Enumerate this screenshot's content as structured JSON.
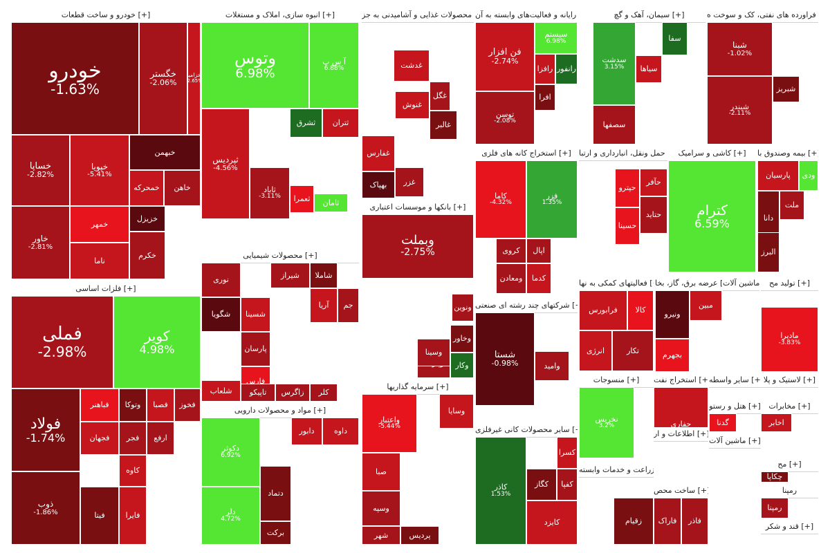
{
  "colors": {
    "neg_dark": "#7a0f12",
    "neg_mid": "#a5141a",
    "neg": "#c5161d",
    "neg_bright": "#e8141d",
    "neutral": "#5a0a0e",
    "pos_dark": "#1e6b22",
    "pos_mid": "#33a633",
    "pos": "#54e633"
  },
  "chart_data": {
    "type": "treemap",
    "sectors": [
      {
        "label": "خودرو و ساخت قطعات [+]",
        "stocks": [
          {
            "symbol": "خودرو",
            "change": "-1.63%"
          },
          {
            "symbol": "خگستر",
            "change": "-2.06%"
          },
          {
            "symbol": "خزامیا",
            "change": "-2.65%"
          },
          {
            "symbol": "خساپا",
            "change": "-2.82%"
          },
          {
            "symbol": "خپویا",
            "change": "-5.41%"
          },
          {
            "symbol": "خبهمن",
            "change": ""
          },
          {
            "symbol": "خمحرکه",
            "change": ""
          },
          {
            "symbol": "خاهن",
            "change": ""
          },
          {
            "symbol": "خزیزل",
            "change": ""
          },
          {
            "symbol": "خاور",
            "change": "-2.81%"
          },
          {
            "symbol": "خمهر",
            "change": ""
          },
          {
            "symbol": "ناما",
            "change": ""
          },
          {
            "symbol": "خکرم",
            "change": ""
          }
        ]
      },
      {
        "label": "فلزات اساسی [+]",
        "stocks": [
          {
            "symbol": "فملی",
            "change": "-2.98%"
          },
          {
            "symbol": "کویر",
            "change": "4.98%"
          },
          {
            "symbol": "فولاد",
            "change": "-1.74%"
          },
          {
            "symbol": "فباهنر",
            "change": ""
          },
          {
            "symbol": "وتوکا",
            "change": ""
          },
          {
            "symbol": "فصبا",
            "change": ""
          },
          {
            "symbol": "فخوز",
            "change": ""
          },
          {
            "symbol": "فجهان",
            "change": ""
          },
          {
            "symbol": "فجر",
            "change": ""
          },
          {
            "symbol": "ارفع",
            "change": ""
          },
          {
            "symbol": "کاوه",
            "change": ""
          },
          {
            "symbol": "ذوب",
            "change": "-1.86%"
          },
          {
            "symbol": "فیتا",
            "change": ""
          },
          {
            "symbol": "فایرا",
            "change": ""
          }
        ]
      },
      {
        "label": "انبوه سازی، املاک و مستغلات [+]",
        "stocks": [
          {
            "symbol": "وتوس",
            "change": "6.98%"
          },
          {
            "symbol": "آ س پ",
            "change": "6.88%"
          },
          {
            "symbol": "ثپردیس",
            "change": "-4.56%"
          },
          {
            "symbol": "ثشرق",
            "change": ""
          },
          {
            "symbol": "ثتران",
            "change": ""
          },
          {
            "symbol": "ثاباد",
            "change": "-3.11%"
          },
          {
            "symbol": "ثامان",
            "change": ""
          },
          {
            "symbol": "ثعمرا",
            "change": ""
          }
        ]
      },
      {
        "label": "محصولات شیمیایی [+]",
        "stocks": [
          {
            "symbol": "نوری",
            "change": ""
          },
          {
            "symbol": "شیراز",
            "change": ""
          },
          {
            "symbol": "شاملا",
            "change": ""
          },
          {
            "symbol": "شگویا",
            "change": ""
          },
          {
            "symbol": "شسینا",
            "change": ""
          },
          {
            "symbol": "آریا",
            "change": ""
          },
          {
            "symbol": "جم",
            "change": ""
          },
          {
            "symbol": "پارسان",
            "change": ""
          },
          {
            "symbol": "شپدیس",
            "change": ""
          },
          {
            "symbol": "شبهدی",
            "change": ""
          },
          {
            "symbol": "فارس",
            "change": ""
          },
          {
            "symbol": "شلعاب",
            "change": ""
          },
          {
            "symbol": "تاپیکو",
            "change": ""
          },
          {
            "symbol": "زاگرس",
            "change": ""
          },
          {
            "symbol": "کلر",
            "change": ""
          }
        ]
      },
      {
        "label": "مواد و محصولات دارویی [+]",
        "stocks": [
          {
            "symbol": "دکوثر",
            "change": "6.92%"
          },
          {
            "symbol": "دلر",
            "change": "4.72%"
          },
          {
            "symbol": "دتماد",
            "change": ""
          },
          {
            "symbol": "برکت",
            "change": ""
          },
          {
            "symbol": "دابور",
            "change": ""
          },
          {
            "symbol": "داوه",
            "change": ""
          }
        ]
      },
      {
        "label": "محصولات غذایی و آشامیدنی به جز [+]",
        "stocks": [
          {
            "symbol": "غدشت",
            "change": ""
          },
          {
            "symbol": "غگل",
            "change": ""
          },
          {
            "symbol": "غالبر",
            "change": ""
          },
          {
            "symbol": "غنوش",
            "change": ""
          },
          {
            "symbol": "غفارس",
            "change": ""
          },
          {
            "symbol": "غزر",
            "change": ""
          },
          {
            "symbol": "بهپاک",
            "change": ""
          }
        ]
      },
      {
        "label": "بانکها و موسسات اعتباری [+]",
        "stocks": [
          {
            "symbol": "وبملت",
            "change": "-2.75%"
          },
          {
            "symbol": "ونوین",
            "change": ""
          },
          {
            "symbol": "وخاور",
            "change": ""
          },
          {
            "symbol": "وپارسا",
            "change": ""
          },
          {
            "symbol": "وکار",
            "change": ""
          },
          {
            "symbol": "وسینا",
            "change": ""
          }
        ]
      },
      {
        "label": "سرمایه گذاریها [+]",
        "stocks": [
          {
            "symbol": "واعتبار",
            "change": "-5.44%"
          },
          {
            "symbol": "وسایا",
            "change": ""
          },
          {
            "symbol": "صبا",
            "change": ""
          },
          {
            "symbol": "وسپه",
            "change": ""
          },
          {
            "symbol": "شهر",
            "change": ""
          },
          {
            "symbol": "پردیس",
            "change": ""
          }
        ]
      },
      {
        "label": "رایانه و فعالیت‌های وابسته به آن [+]",
        "stocks": [
          {
            "symbol": "فن افزار",
            "change": "-2.74%"
          },
          {
            "symbol": "سیستم",
            "change": "6.98%"
          },
          {
            "symbol": "رانفور",
            "change": ""
          },
          {
            "symbol": "رافزا",
            "change": ""
          },
          {
            "symbol": "افرا",
            "change": ""
          },
          {
            "symbol": "توسن",
            "change": "-2.08%"
          }
        ]
      },
      {
        "label": "استخراج کانه های فلزی [+]",
        "stocks": [
          {
            "symbol": "کاما",
            "change": "-4.32%"
          },
          {
            "symbol": "فزر",
            "change": "1.35%"
          },
          {
            "symbol": "کروی",
            "change": ""
          },
          {
            "symbol": "اپال",
            "change": ""
          },
          {
            "symbol": "کدما",
            "change": ""
          },
          {
            "symbol": "ومعادن",
            "change": ""
          }
        ]
      },
      {
        "label": "شرکتهای چند رشته ای صنعتی [+]",
        "stocks": [
          {
            "symbol": "شستا",
            "change": "-0.98%"
          },
          {
            "symbol": "وامید",
            "change": ""
          }
        ]
      },
      {
        "label": "سایر محصولات کانی غیرفلزی [+]",
        "stocks": [
          {
            "symbol": "کاذر",
            "change": "1.53%"
          },
          {
            "symbol": "کسرا",
            "change": ""
          },
          {
            "symbol": "کگاز",
            "change": ""
          },
          {
            "symbol": "کفپا",
            "change": ""
          },
          {
            "symbol": "کایزد",
            "change": ""
          }
        ]
      },
      {
        "label": "سیمان، آهک و گچ [+]",
        "stocks": [
          {
            "symbol": "سدشت",
            "change": "3.15%"
          },
          {
            "symbol": "سفا",
            "change": ""
          },
          {
            "symbol": "سیاها",
            "change": ""
          },
          {
            "symbol": "سصفها",
            "change": ""
          }
        ]
      },
      {
        "label": "فراورده های نفتی، کک و سوخت ه [+]",
        "stocks": [
          {
            "symbol": "شبنا",
            "change": "-1.02%"
          },
          {
            "symbol": "شبریز",
            "change": ""
          },
          {
            "symbol": "شبندر",
            "change": "-2.11%"
          }
        ]
      },
      {
        "label": "حمل ونقل، انبارداری و ارتبا [+]",
        "stocks": [
          {
            "symbol": "حآفر",
            "change": ""
          },
          {
            "symbol": "حپترو",
            "change": ""
          },
          {
            "symbol": "حتاید",
            "change": ""
          },
          {
            "symbol": "حسینا",
            "change": ""
          }
        ]
      },
      {
        "label": "کاشی و سرامیک [+]",
        "stocks": [
          {
            "symbol": "کترام",
            "change": "6.59%"
          }
        ]
      },
      {
        "label": "بیمه وصندوق با [+]",
        "stocks": [
          {
            "symbol": "پارسیان",
            "change": ""
          },
          {
            "symbol": "ودی",
            "change": ""
          },
          {
            "symbol": "ملت",
            "change": ""
          },
          {
            "symbol": "دانا",
            "change": ""
          },
          {
            "symbol": "البرز",
            "change": ""
          }
        ]
      },
      {
        "label": "فعالیتهای کمکی به نها [+]",
        "stocks": [
          {
            "symbol": "فرابورس",
            "change": ""
          },
          {
            "symbol": "کالا",
            "change": ""
          },
          {
            "symbol": "انرژی",
            "change": ""
          },
          {
            "symbol": "تکار",
            "change": ""
          }
        ]
      },
      {
        "label": "عرضه برق، گاز، بخا [+]",
        "stocks": [
          {
            "symbol": "ونیرو",
            "change": ""
          },
          {
            "symbol": "مبین",
            "change": ""
          },
          {
            "symbol": "بجهرم",
            "change": ""
          }
        ]
      },
      {
        "label": "ماشین آلات [+]",
        "stocks": []
      },
      {
        "label": "تولید مح [+]",
        "stocks": [
          {
            "symbol": "مادیرا",
            "change": "-3.83%"
          }
        ]
      },
      {
        "label": "منسوجات [+]",
        "stocks": [
          {
            "symbol": "نخریس",
            "change": "3.2%"
          }
        ]
      },
      {
        "label": "استخراج نفت [+]",
        "stocks": [
          {
            "symbol": "حفاری",
            "change": "-2.47%"
          }
        ]
      },
      {
        "label": "سایر واسطه [+]",
        "stocks": []
      },
      {
        "label": "لاستیک و پلا [+]",
        "stocks": []
      },
      {
        "label": "هتل و رستو [+]",
        "stocks": [
          {
            "symbol": "گدنا",
            "change": ""
          }
        ]
      },
      {
        "label": "مخابرات [+]",
        "stocks": [
          {
            "symbol": "اخابر",
            "change": ""
          }
        ]
      },
      {
        "label": "اطلاعات و ار [+]",
        "stocks": []
      },
      {
        "label": "ماشین آلات [+]",
        "stocks": []
      },
      {
        "label": "زراعت و خدمات وابسته [+]",
        "stocks": [
          {
            "symbol": "زقیام",
            "change": ""
          }
        ]
      },
      {
        "label": "ساخت محص [+]",
        "stocks": [
          {
            "symbol": "فاراک",
            "change": ""
          },
          {
            "symbol": "فاذر",
            "change": ""
          }
        ]
      },
      {
        "label": "مح [+]",
        "stocks": [
          {
            "symbol": "چکاپا",
            "change": ""
          }
        ]
      },
      {
        "label": "رمپنا",
        "stocks": [
          {
            "symbol": "رمپنا",
            "change": ""
          }
        ]
      },
      {
        "label": "قند و شکر [+]",
        "stocks": []
      }
    ]
  }
}
